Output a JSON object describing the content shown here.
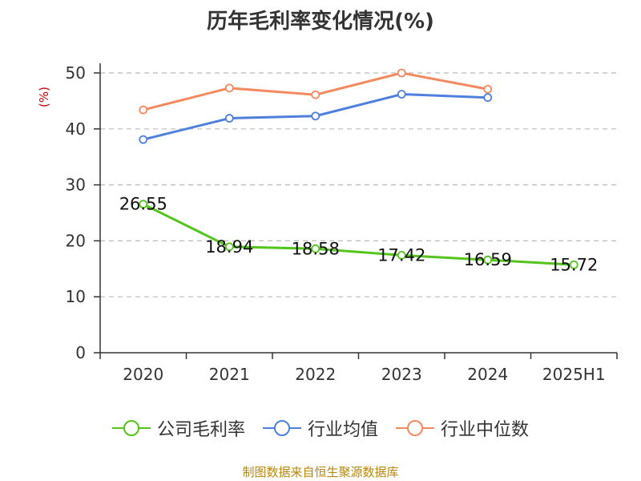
{
  "chart_data": {
    "type": "line",
    "title": "历年毛利率变化情况(%)",
    "ylabel": "(%)",
    "ylim": [
      0,
      50
    ],
    "yticks": [
      0,
      10,
      20,
      30,
      40,
      50
    ],
    "categories": [
      "2020",
      "2021",
      "2022",
      "2023",
      "2024",
      "2025H1"
    ],
    "grid": true,
    "legend_position": "bottom",
    "series": [
      {
        "name": "公司毛利率",
        "color": "#52c41a",
        "values": [
          26.55,
          18.94,
          18.58,
          17.42,
          16.59,
          15.72
        ],
        "show_labels": true
      },
      {
        "name": "行业均值",
        "color": "#4f7fdd",
        "values": [
          38.1,
          41.9,
          42.3,
          46.2,
          45.6,
          null
        ],
        "show_labels": false
      },
      {
        "name": "行业中位数",
        "color": "#f4895f",
        "values": [
          43.4,
          47.3,
          46.1,
          50.0,
          47.1,
          null
        ],
        "show_labels": false
      }
    ],
    "source": "制图数据来自恒生聚源数据库"
  }
}
